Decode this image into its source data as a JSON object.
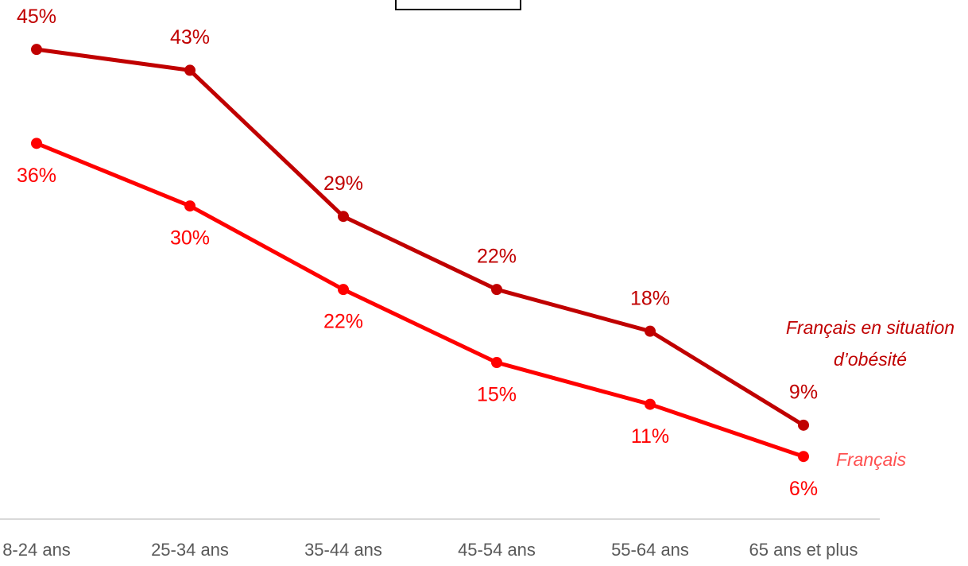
{
  "chart_data": {
    "type": "line",
    "categories": [
      "8-24 ans",
      "25-34 ans",
      "35-44 ans",
      "45-54 ans",
      "55-64 ans",
      "65 ans et plus"
    ],
    "series": [
      {
        "name": "Français en situation d’obésité",
        "color": "#c00000",
        "values": [
          45,
          43,
          29,
          22,
          18,
          9
        ],
        "value_labels": [
          "45%",
          "43%",
          "29%",
          "22%",
          "18%",
          "9%"
        ]
      },
      {
        "name": "Français",
        "color": "#ff0000",
        "values": [
          36,
          30,
          22,
          15,
          11,
          6
        ],
        "value_labels": [
          "36%",
          "30%",
          "22%",
          "15%",
          "11%",
          "6%"
        ]
      }
    ],
    "ylim": [
      0,
      50
    ]
  }
}
